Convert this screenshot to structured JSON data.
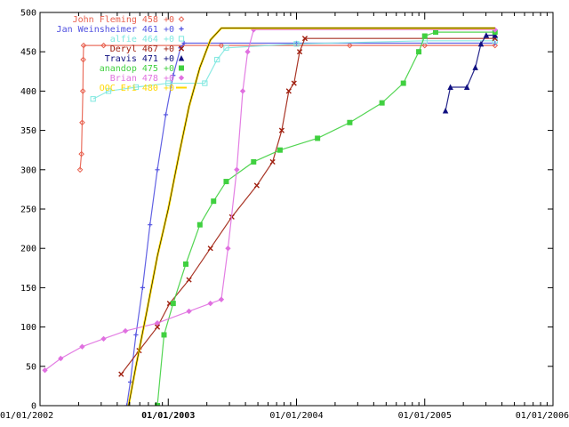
{
  "chart_data": {
    "type": "line",
    "title": "",
    "xlabel": "",
    "ylabel": "",
    "x_scale": "log",
    "grid": false,
    "legend_position": "top-left",
    "xlim": [
      "2002-01-01",
      "2006-01-01"
    ],
    "ylim": [
      0,
      500
    ],
    "x_tick_labels": [
      "01/01/2002",
      "01/01/2003",
      "01/01/2004",
      "01/01/2005",
      "01/01/2006"
    ],
    "x_tick_bold": [
      false,
      true,
      false,
      false,
      false
    ],
    "y_ticks": [
      0,
      50,
      100,
      150,
      200,
      250,
      300,
      350,
      400,
      450,
      500
    ],
    "series": [
      {
        "name": "John Fleming 458 +0",
        "marker_symbol": "◇",
        "color": "#e8614f",
        "style": "markers",
        "points": [
          [
            "2002-04-25",
            300
          ],
          [
            "2002-04-29",
            320
          ],
          [
            "2002-05-01",
            360
          ],
          [
            "2002-05-03",
            400
          ],
          [
            "2002-05-04",
            440
          ],
          [
            "2002-05-05",
            458
          ],
          [
            "2002-07-01",
            458
          ],
          [
            "2003-06-01",
            458
          ],
          [
            "2004-06-01",
            458
          ],
          [
            "2005-01-01",
            458
          ],
          [
            "2005-07-20",
            458
          ]
        ]
      },
      {
        "name": "Jan Weinsheimer 461 +0",
        "marker_symbol": "+",
        "color": "#5050e0",
        "style": "markers",
        "points": [
          [
            "2002-09-05",
            0
          ],
          [
            "2002-09-15",
            30
          ],
          [
            "2002-10-01",
            90
          ],
          [
            "2002-10-20",
            150
          ],
          [
            "2002-11-10",
            230
          ],
          [
            "2002-12-01",
            300
          ],
          [
            "2002-12-25",
            370
          ],
          [
            "2003-01-15",
            420
          ],
          [
            "2003-02-05",
            455
          ],
          [
            "2003-02-15",
            461
          ],
          [
            "2004-01-01",
            461
          ],
          [
            "2005-07-20",
            461
          ]
        ]
      },
      {
        "name": "alfie 464 +0",
        "marker_symbol": "□",
        "color": "#7fe8e0",
        "style": "markers",
        "points": [
          [
            "2002-06-01",
            390
          ],
          [
            "2002-07-15",
            400
          ],
          [
            "2002-10-01",
            405
          ],
          [
            "2003-01-01",
            410
          ],
          [
            "2003-04-15",
            410
          ],
          [
            "2003-05-20",
            440
          ],
          [
            "2003-06-15",
            455
          ],
          [
            "2004-01-01",
            460
          ],
          [
            "2005-01-01",
            464
          ],
          [
            "2005-07-20",
            464
          ]
        ]
      },
      {
        "name": "Deryl 467 +0",
        "marker_symbol": "×",
        "color": "#a02010",
        "style": "markers",
        "points": [
          [
            "2002-08-20",
            40
          ],
          [
            "2002-10-10",
            70
          ],
          [
            "2002-12-01",
            100
          ],
          [
            "2003-01-05",
            130
          ],
          [
            "2003-03-01",
            160
          ],
          [
            "2003-05-01",
            200
          ],
          [
            "2003-07-01",
            240
          ],
          [
            "2003-09-10",
            280
          ],
          [
            "2003-10-25",
            310
          ],
          [
            "2003-11-20",
            350
          ],
          [
            "2003-12-10",
            400
          ],
          [
            "2003-12-25",
            410
          ],
          [
            "2004-01-10",
            450
          ],
          [
            "2004-01-25",
            467
          ],
          [
            "2005-07-20",
            467
          ]
        ]
      },
      {
        "name": "Travis 471 +0",
        "marker_symbol": "▲",
        "color": "#101080",
        "style": "markers",
        "points": [
          [
            "2005-03-01",
            375
          ],
          [
            "2005-03-15",
            405
          ],
          [
            "2005-05-01",
            405
          ],
          [
            "2005-05-25",
            430
          ],
          [
            "2005-06-10",
            460
          ],
          [
            "2005-06-25",
            471
          ],
          [
            "2005-07-20",
            471
          ]
        ]
      },
      {
        "name": "anandop 475 +0",
        "marker_symbol": "■",
        "color": "#40d040",
        "style": "markers",
        "points": [
          [
            "2002-12-01",
            0
          ],
          [
            "2002-12-20",
            90
          ],
          [
            "2003-01-15",
            130
          ],
          [
            "2003-02-20",
            180
          ],
          [
            "2003-04-01",
            230
          ],
          [
            "2003-05-10",
            260
          ],
          [
            "2003-06-15",
            285
          ],
          [
            "2003-09-01",
            310
          ],
          [
            "2003-11-15",
            325
          ],
          [
            "2004-03-01",
            340
          ],
          [
            "2004-06-01",
            360
          ],
          [
            "2004-09-01",
            385
          ],
          [
            "2004-11-01",
            410
          ],
          [
            "2004-12-15",
            450
          ],
          [
            "2005-01-01",
            470
          ],
          [
            "2005-02-01",
            475
          ],
          [
            "2005-07-20",
            475
          ]
        ]
      },
      {
        "name": "Brian 478 +0",
        "marker_symbol": "◆",
        "color": "#e070e0",
        "style": "markers",
        "points": [
          [
            "2002-01-15",
            45
          ],
          [
            "2002-03-01",
            60
          ],
          [
            "2002-05-01",
            75
          ],
          [
            "2002-07-01",
            85
          ],
          [
            "2002-09-01",
            95
          ],
          [
            "2002-12-01",
            105
          ],
          [
            "2003-03-01",
            120
          ],
          [
            "2003-05-01",
            130
          ],
          [
            "2003-06-01",
            135
          ],
          [
            "2003-06-20",
            200
          ],
          [
            "2003-07-15",
            300
          ],
          [
            "2003-08-01",
            400
          ],
          [
            "2003-08-15",
            450
          ],
          [
            "2003-09-01",
            478
          ],
          [
            "2005-07-20",
            478
          ]
        ]
      },
      {
        "name": "OOC Eri 480 +0",
        "marker_symbol": "",
        "color": "#ffd800",
        "style": "line",
        "points": [
          [
            "2002-09-10",
            0
          ],
          [
            "2002-10-01",
            50
          ],
          [
            "2002-11-01",
            120
          ],
          [
            "2002-12-01",
            190
          ],
          [
            "2003-01-01",
            250
          ],
          [
            "2003-02-01",
            320
          ],
          [
            "2003-03-01",
            380
          ],
          [
            "2003-04-01",
            430
          ],
          [
            "2003-05-01",
            465
          ],
          [
            "2003-06-01",
            480
          ],
          [
            "2005-07-20",
            480
          ]
        ]
      }
    ]
  }
}
